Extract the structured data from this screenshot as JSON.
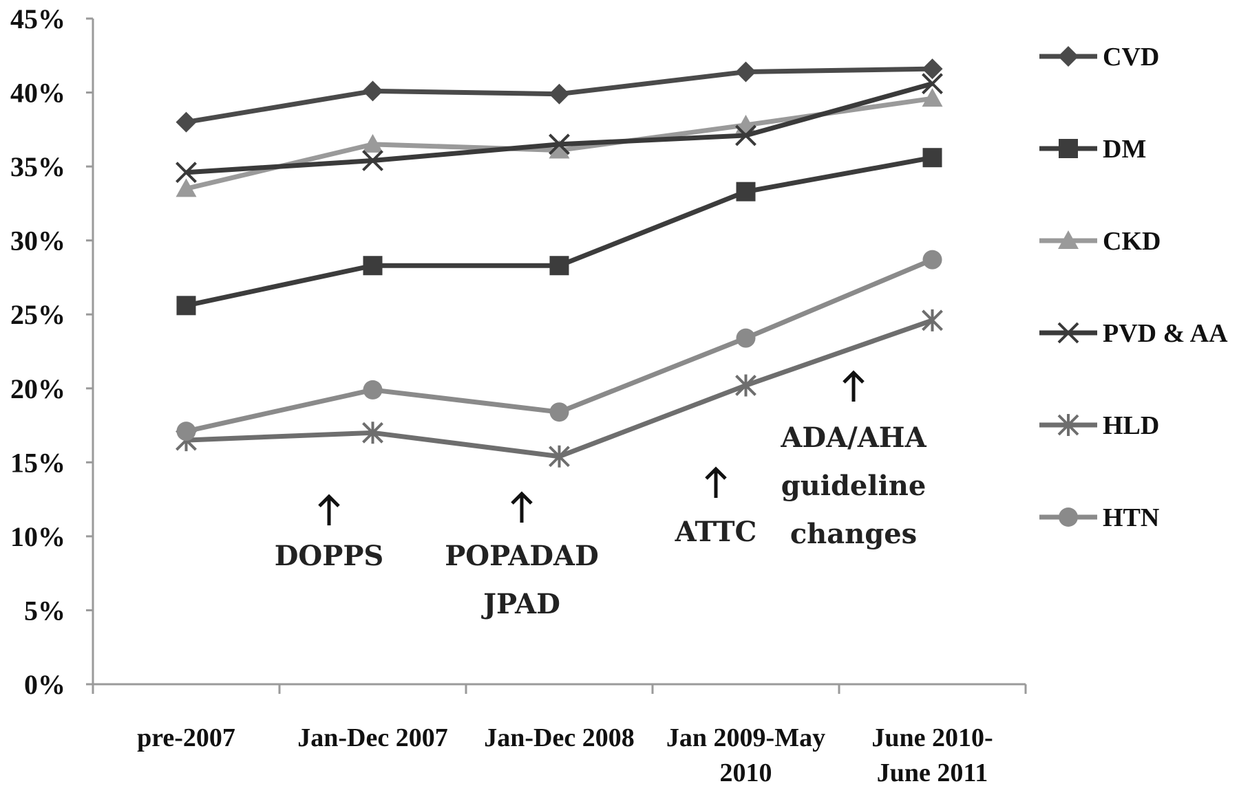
{
  "chart_data": {
    "type": "line",
    "categories": [
      [
        "pre-2007"
      ],
      [
        "Jan-Dec 2007"
      ],
      [
        "Jan-Dec 2008"
      ],
      [
        "Jan 2009-May",
        "2010"
      ],
      [
        "June 2010-",
        "June 2011"
      ]
    ],
    "ylim": [
      0,
      45
    ],
    "yticks": [
      "0%",
      "5%",
      "10%",
      "15%",
      "20%",
      "25%",
      "30%",
      "35%",
      "40%",
      "45%"
    ],
    "ytick_values": [
      0,
      5,
      10,
      15,
      20,
      25,
      30,
      35,
      40,
      45
    ],
    "legend_position": "right",
    "series": [
      {
        "name": "CVD",
        "marker": "diamond",
        "color": "#4a4a4a",
        "values": [
          38.0,
          40.1,
          39.9,
          41.4,
          41.6
        ]
      },
      {
        "name": "DM",
        "marker": "square",
        "color": "#3c3c3c",
        "values": [
          25.6,
          28.3,
          28.3,
          33.3,
          35.6
        ]
      },
      {
        "name": "CKD",
        "marker": "triangle",
        "color": "#9a9a9a",
        "values": [
          33.5,
          36.5,
          36.1,
          37.8,
          39.6
        ]
      },
      {
        "name": "PVD & AA",
        "marker": "x",
        "color": "#3a3a3a",
        "values": [
          34.6,
          35.4,
          36.5,
          37.1,
          40.6
        ]
      },
      {
        "name": "HLD",
        "marker": "star",
        "color": "#6e6e6e",
        "values": [
          16.5,
          17.0,
          15.4,
          20.2,
          24.6
        ]
      },
      {
        "name": "HTN",
        "marker": "circle",
        "color": "#8a8a8a",
        "values": [
          17.1,
          19.9,
          18.4,
          23.4,
          28.7
        ]
      }
    ],
    "annotations": [
      {
        "lines": [
          "DOPPS"
        ],
        "near_category": 1
      },
      {
        "lines": [
          "POPADAD",
          "JPAD"
        ],
        "near_category": 2
      },
      {
        "lines": [
          "ATTC"
        ],
        "near_category": 3
      },
      {
        "lines": [
          "ADA/AHA",
          "guideline",
          "changes"
        ],
        "near_category": 3.5
      }
    ]
  }
}
